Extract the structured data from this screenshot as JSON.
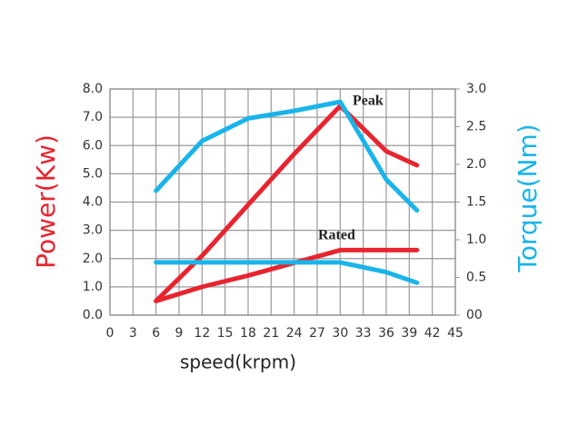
{
  "chart_data": {
    "type": "line",
    "xlabel": "speed(krpm)",
    "ylabel": "Power(Kw)",
    "y2label": "Torque(Nm)",
    "xlim": [
      0,
      45
    ],
    "xticks": [
      0,
      3,
      6,
      9,
      12,
      15,
      18,
      21,
      24,
      27,
      30,
      33,
      36,
      39,
      42,
      45
    ],
    "ylim": [
      0,
      8
    ],
    "yticks": [
      {
        "value": 0,
        "label": "0.0"
      },
      {
        "value": 1,
        "label": "1.0"
      },
      {
        "value": 2,
        "label": "2.0"
      },
      {
        "value": 3,
        "label": "3.0"
      },
      {
        "value": 4,
        "label": "4.0"
      },
      {
        "value": 5,
        "label": "5.0"
      },
      {
        "value": 6,
        "label": "6.0"
      },
      {
        "value": 7,
        "label": "7.0"
      },
      {
        "value": 8,
        "label": "8.0"
      }
    ],
    "y2lim": [
      0,
      3
    ],
    "y2ticks": [
      {
        "value": 0,
        "label": "00"
      },
      0.5,
      {
        "value": 1,
        "label": "1.0"
      },
      1.5,
      {
        "value": 2,
        "label": "2.0"
      },
      2.5,
      {
        "value": 3,
        "label": "3.0"
      }
    ],
    "grid": true,
    "series": [
      {
        "color": "#e8242f",
        "x": [
          6,
          12,
          18,
          24,
          30,
          36,
          40
        ],
        "values": [
          0.5,
          2.1,
          3.9,
          5.7,
          7.4,
          5.8,
          5.3
        ]
      },
      {
        "color": "#e8242f",
        "x": [
          6,
          12,
          18,
          24,
          30,
          36,
          40
        ],
        "values": [
          0.5,
          1.0,
          1.4,
          1.85,
          2.3,
          2.3,
          2.3
        ]
      },
      {
        "color": "#19b4ea",
        "axis": "y2",
        "x": [
          6,
          12,
          18,
          24,
          30,
          36,
          40
        ],
        "values": [
          1.65,
          2.31,
          2.61,
          2.71,
          2.83,
          1.8,
          1.39
        ]
      },
      {
        "color": "#19b4ea",
        "axis": "y2",
        "x": [
          6,
          12,
          18,
          24,
          30,
          36,
          40
        ],
        "values": [
          0.7,
          0.7,
          0.7,
          0.7,
          0.7,
          0.57,
          0.43
        ]
      }
    ],
    "annotations": [
      "Peak",
      "Rated"
    ]
  }
}
